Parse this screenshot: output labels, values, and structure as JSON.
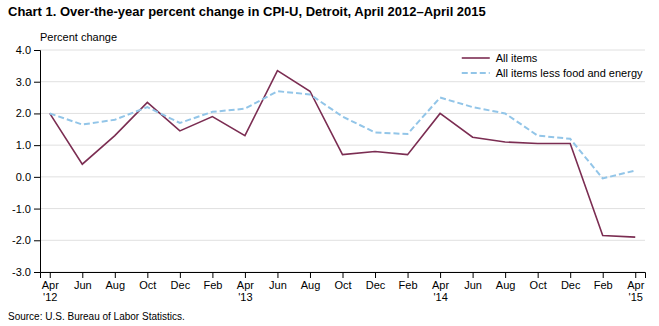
{
  "chart_data": {
    "type": "line",
    "title": "Chart 1. Over-the-year percent change in CPI-U, Detroit, April 2012–April 2015",
    "ylabel": "Percent change",
    "source": "Source: U.S. Bureau of Labor Statistics.",
    "categories": [
      "Apr\n'12",
      "Jun",
      "Aug",
      "Oct",
      "Dec",
      "Feb",
      "Apr\n'13",
      "Jun",
      "Aug",
      "Oct",
      "Dec",
      "Feb",
      "Apr\n'14",
      "Jun",
      "Aug",
      "Oct",
      "Dec",
      "Feb",
      "Apr\n'15"
    ],
    "series": [
      {
        "name": "All items",
        "color": "#7B2D52",
        "line_style": "solid",
        "values": [
          2.0,
          0.4,
          1.3,
          2.35,
          1.45,
          1.9,
          1.3,
          3.35,
          2.7,
          0.7,
          0.8,
          0.7,
          2.0,
          1.25,
          1.1,
          1.05,
          1.05,
          -1.85,
          -1.9
        ]
      },
      {
        "name": "All items less food and energy",
        "color": "#92C5E8",
        "line_style": "dashed",
        "values": [
          2.0,
          1.65,
          1.8,
          2.2,
          1.7,
          2.05,
          2.15,
          2.7,
          2.6,
          1.9,
          1.4,
          1.35,
          2.5,
          2.2,
          2.0,
          1.3,
          1.2,
          -0.05,
          0.2
        ]
      }
    ],
    "ylim": [
      -3.0,
      4.0
    ],
    "yticks": [
      {
        "value": -3.0,
        "label": "-3.0"
      },
      {
        "value": -2.0,
        "label": "-2.0"
      },
      {
        "value": -1.0,
        "label": "-1.0"
      },
      {
        "value": 0.0,
        "label": "0.0"
      },
      {
        "value": 1.0,
        "label": "1.0"
      },
      {
        "value": 2.0,
        "label": "2.0"
      },
      {
        "value": 3.0,
        "label": "3.0"
      },
      {
        "value": 4.0,
        "label": "4.0"
      }
    ],
    "grid": true,
    "legend": "top-right"
  }
}
